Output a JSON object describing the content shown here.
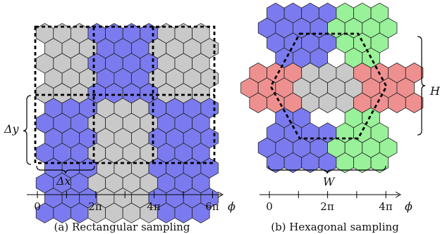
{
  "colors": {
    "blue": "#7b7bef",
    "gray": "#c9c9c9",
    "green": "#99f199",
    "red": "#ef9090",
    "outline": "#222222",
    "dashed": "#000000"
  },
  "panel_a": {
    "caption": "(a) Rectangular sampling",
    "delta_x_label": "Δx",
    "delta_y_label": "Δy",
    "axis_symbol": "ϕ",
    "ticks": [
      "0",
      "2π",
      "4π",
      "6π"
    ],
    "block_colors": [
      [
        "gray",
        "blue",
        "gray"
      ],
      [
        "blue",
        "gray",
        "blue"
      ]
    ]
  },
  "panel_b": {
    "caption": "(b) Hexagonal sampling",
    "width_label": "W",
    "height_label": "H",
    "axis_symbol": "ϕ",
    "ticks": [
      "0",
      "2π",
      "4π"
    ],
    "regions": [
      "blue",
      "green",
      "red",
      "gray",
      "red",
      "blue",
      "green"
    ]
  }
}
